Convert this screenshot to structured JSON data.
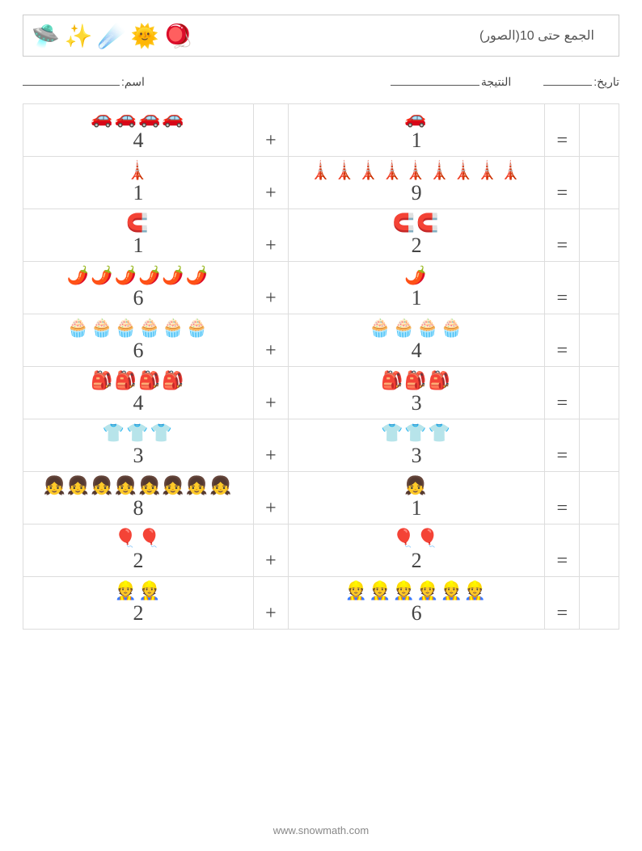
{
  "header": {
    "icons": [
      "🛸",
      "✨",
      "☄️",
      "🌞",
      "🪀"
    ],
    "title": "(الصور)الجمع حتى 10"
  },
  "fields": {
    "date_label": "تاريخ:",
    "score_label": "النتيجة",
    "name_label": "اسم:",
    "date_line_width": 60,
    "score_line_width": 110,
    "name_line_width": 120
  },
  "layout": {
    "col_a_width": 280,
    "col_op_width": 42,
    "col_b_width": 312,
    "col_eq_width": 42,
    "col_ans_width": 48,
    "border_color": "#dddddd",
    "num_fontsize": 26,
    "icon_fontsize": 22,
    "op_fontsize": 24,
    "text_color": "#444444",
    "background": "#ffffff"
  },
  "rows": [
    {
      "icon": "🚗",
      "a": 4,
      "op": "+",
      "b": 1,
      "eq": "="
    },
    {
      "icon": "🗼",
      "a": 1,
      "op": "+",
      "b": 9,
      "eq": "="
    },
    {
      "icon": "🧲",
      "a": 1,
      "op": "+",
      "b": 2,
      "eq": "="
    },
    {
      "icon": "🌶️",
      "a": 6,
      "op": "+",
      "b": 1,
      "eq": "="
    },
    {
      "icon": "🧁",
      "a": 6,
      "op": "+",
      "b": 4,
      "eq": "="
    },
    {
      "icon": "🎒",
      "a": 4,
      "op": "+",
      "b": 3,
      "eq": "="
    },
    {
      "icon": "👕",
      "a": 3,
      "op": "+",
      "b": 3,
      "eq": "="
    },
    {
      "icon": "👧",
      "a": 8,
      "op": "+",
      "b": 1,
      "eq": "="
    },
    {
      "icon": "🎈",
      "a": 2,
      "op": "+",
      "b": 2,
      "eq": "="
    },
    {
      "icon": "👷",
      "a": 2,
      "op": "+",
      "b": 6,
      "eq": "="
    }
  ],
  "footer": {
    "url": "www.snowmath.com"
  }
}
